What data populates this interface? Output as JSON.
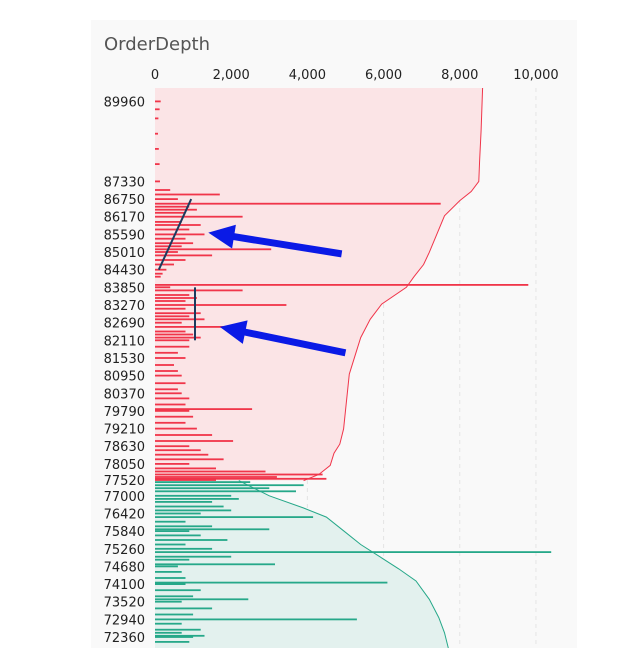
{
  "chart_data": {
    "type": "bar",
    "orientation": "horizontal",
    "title": "OrderDepth",
    "xlabel": "",
    "ylabel": "",
    "xlim": [
      0,
      10500
    ],
    "x_ticks": [
      0,
      2000,
      4000,
      6000,
      8000,
      10000
    ],
    "x_tick_labels": [
      "0",
      "2,000",
      "4,000",
      "6,000",
      "8,000",
      "10,000"
    ],
    "y_range": [
      90400,
      72000
    ],
    "y_ticks": [
      89960,
      87330,
      86750,
      86170,
      85590,
      85010,
      84430,
      83850,
      83270,
      82690,
      82110,
      81530,
      80950,
      80370,
      79790,
      79210,
      78630,
      78050,
      77520,
      77000,
      76420,
      75840,
      75260,
      74680,
      74100,
      73520,
      72940,
      72360
    ],
    "grid": "vertical",
    "colors": {
      "ask": "#f0354a",
      "bid": "#26a889",
      "ask_fill": "#fbe4e6",
      "bid_fill": "#e3f1ee",
      "arrow": "#0a1ae6",
      "trend": "#1c3a5e"
    },
    "series": [
      {
        "side": "ask",
        "bars": [
          [
            89960,
            150
          ],
          [
            89700,
            120
          ],
          [
            89400,
            90
          ],
          [
            88900,
            80
          ],
          [
            88400,
            100
          ],
          [
            87900,
            120
          ],
          [
            87330,
            130
          ],
          [
            87050,
            400
          ],
          [
            86900,
            1700
          ],
          [
            86750,
            600
          ],
          [
            86600,
            7500
          ],
          [
            86500,
            900
          ],
          [
            86400,
            1100
          ],
          [
            86300,
            800
          ],
          [
            86170,
            2300
          ],
          [
            86000,
            700
          ],
          [
            85900,
            1200
          ],
          [
            85750,
            900
          ],
          [
            85590,
            1300
          ],
          [
            85450,
            800
          ],
          [
            85300,
            1000
          ],
          [
            85200,
            700
          ],
          [
            85100,
            3050
          ],
          [
            85010,
            600
          ],
          [
            84900,
            1500
          ],
          [
            84750,
            800
          ],
          [
            84600,
            500
          ],
          [
            84430,
            300
          ],
          [
            84300,
            200
          ],
          [
            84200,
            150
          ],
          [
            83930,
            9800
          ],
          [
            83850,
            400
          ],
          [
            83750,
            2300
          ],
          [
            83600,
            900
          ],
          [
            83500,
            1100
          ],
          [
            83400,
            800
          ],
          [
            83270,
            3450
          ],
          [
            83150,
            800
          ],
          [
            83000,
            1200
          ],
          [
            82900,
            900
          ],
          [
            82800,
            1300
          ],
          [
            82690,
            700
          ],
          [
            82550,
            2300
          ],
          [
            82400,
            800
          ],
          [
            82300,
            1000
          ],
          [
            82200,
            1200
          ],
          [
            82110,
            900
          ],
          [
            81900,
            900
          ],
          [
            81700,
            600
          ],
          [
            81530,
            800
          ],
          [
            81300,
            500
          ],
          [
            81100,
            600
          ],
          [
            80950,
            700
          ],
          [
            80700,
            800
          ],
          [
            80500,
            600
          ],
          [
            80370,
            700
          ],
          [
            80200,
            900
          ],
          [
            80000,
            800
          ],
          [
            79850,
            2550
          ],
          [
            79790,
            900
          ],
          [
            79600,
            1000
          ],
          [
            79400,
            800
          ],
          [
            79210,
            1100
          ],
          [
            79000,
            1500
          ],
          [
            78800,
            2050
          ],
          [
            78630,
            900
          ],
          [
            78500,
            1200
          ],
          [
            78350,
            1400
          ],
          [
            78200,
            1800
          ],
          [
            78050,
            900
          ],
          [
            77900,
            1600
          ],
          [
            77800,
            2900
          ],
          [
            77700,
            4400
          ],
          [
            77620,
            3200
          ],
          [
            77560,
            4500
          ],
          [
            77520,
            1600
          ]
        ],
        "cumulative": [
          [
            77500,
            3900
          ],
          [
            77700,
            4300
          ],
          [
            78000,
            4600
          ],
          [
            78400,
            4700
          ],
          [
            78700,
            4850
          ],
          [
            79200,
            4950
          ],
          [
            79800,
            5000
          ],
          [
            80400,
            5050
          ],
          [
            81000,
            5100
          ],
          [
            81600,
            5250
          ],
          [
            82200,
            5400
          ],
          [
            82800,
            5650
          ],
          [
            83300,
            5950
          ],
          [
            83850,
            6600
          ],
          [
            84200,
            6800
          ],
          [
            84600,
            7050
          ],
          [
            85000,
            7200
          ],
          [
            85600,
            7400
          ],
          [
            86200,
            7600
          ],
          [
            86700,
            8000
          ],
          [
            87000,
            8300
          ],
          [
            87330,
            8500
          ],
          [
            88000,
            8520
          ],
          [
            89000,
            8560
          ],
          [
            90400,
            8600
          ]
        ]
      },
      {
        "side": "bid",
        "bars": [
          [
            77450,
            2500
          ],
          [
            77350,
            3900
          ],
          [
            77250,
            3000
          ],
          [
            77150,
            3700
          ],
          [
            77000,
            2000
          ],
          [
            76900,
            2200
          ],
          [
            76800,
            1500
          ],
          [
            76650,
            1800
          ],
          [
            76520,
            2000
          ],
          [
            76420,
            1200
          ],
          [
            76300,
            4150
          ],
          [
            76150,
            800
          ],
          [
            76000,
            1500
          ],
          [
            75900,
            3000
          ],
          [
            75840,
            900
          ],
          [
            75700,
            1200
          ],
          [
            75550,
            1900
          ],
          [
            75400,
            800
          ],
          [
            75260,
            1500
          ],
          [
            75150,
            10400
          ],
          [
            75000,
            2000
          ],
          [
            74900,
            900
          ],
          [
            74750,
            3150
          ],
          [
            74680,
            600
          ],
          [
            74500,
            700
          ],
          [
            74300,
            800
          ],
          [
            74150,
            6100
          ],
          [
            74100,
            800
          ],
          [
            73900,
            1200
          ],
          [
            73700,
            1000
          ],
          [
            73600,
            2450
          ],
          [
            73520,
            700
          ],
          [
            73300,
            1500
          ],
          [
            73100,
            1000
          ],
          [
            72940,
            5300
          ],
          [
            72800,
            700
          ],
          [
            72600,
            1200
          ],
          [
            72500,
            700
          ],
          [
            72400,
            1300
          ],
          [
            72360,
            1000
          ],
          [
            72200,
            900
          ]
        ],
        "cumulative": [
          [
            77500,
            2200
          ],
          [
            77000,
            3000
          ],
          [
            76600,
            3900
          ],
          [
            76300,
            4500
          ],
          [
            75800,
            5000
          ],
          [
            75400,
            5400
          ],
          [
            75000,
            5900
          ],
          [
            74600,
            6400
          ],
          [
            74200,
            6850
          ],
          [
            73600,
            7200
          ],
          [
            73000,
            7450
          ],
          [
            72500,
            7600
          ],
          [
            72000,
            7700
          ]
        ]
      }
    ],
    "annotations": [
      {
        "type": "trend-line",
        "points": [
          [
            84430,
            100
          ],
          [
            86750,
            950
          ]
        ]
      },
      {
        "type": "trend-line",
        "points": [
          [
            83850,
            1050
          ],
          [
            82110,
            1050
          ]
        ]
      },
      {
        "type": "arrow",
        "from": [
          84950,
          4900
        ],
        "to": [
          85650,
          1400
        ]
      },
      {
        "type": "arrow",
        "from": [
          81700,
          5000
        ],
        "to": [
          82550,
          1700
        ]
      }
    ]
  }
}
